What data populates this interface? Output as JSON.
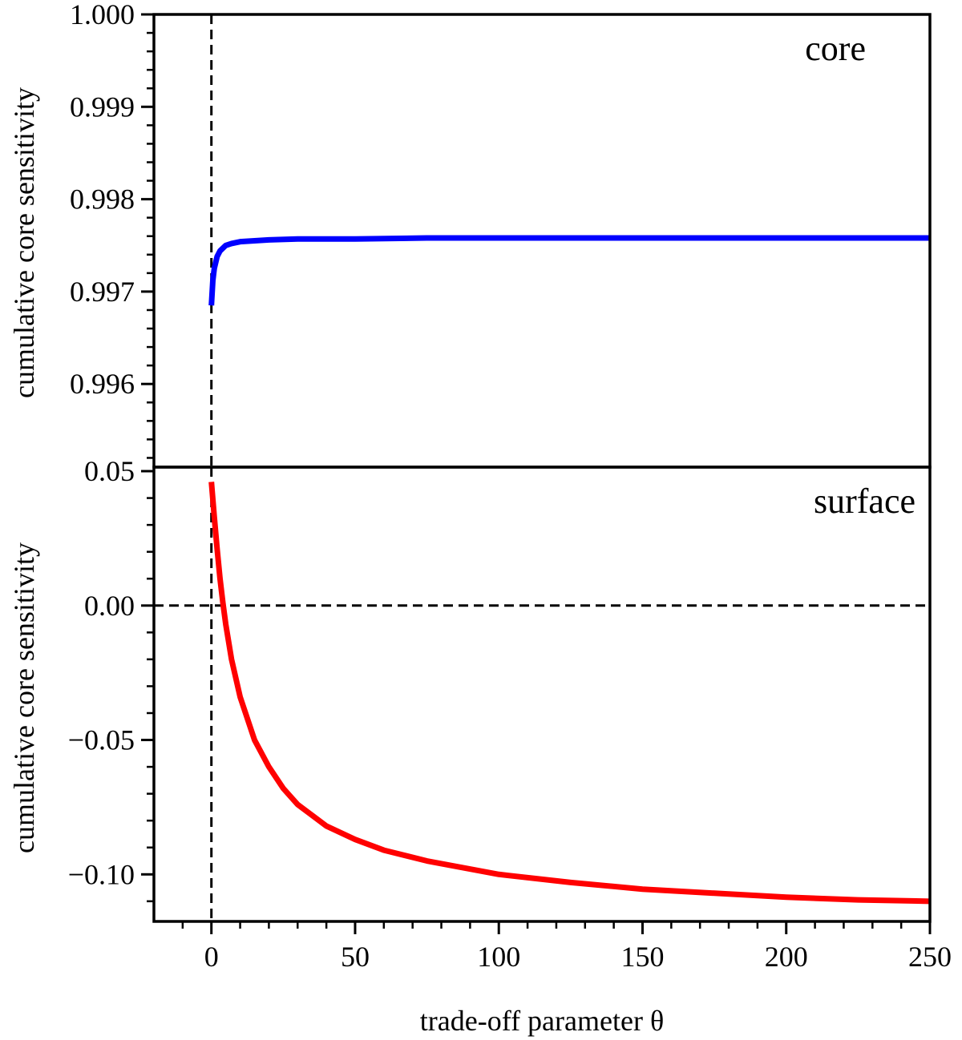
{
  "chart_data": [
    {
      "type": "line",
      "panel_label": "core",
      "xlabel": "trade-off parameter θ",
      "ylabel": "cumulative core sensitivity",
      "xlim": [
        -20,
        250
      ],
      "ylim": [
        0.9951,
        1.0
      ],
      "x_ticks": [
        0,
        50,
        100,
        150,
        200,
        250
      ],
      "y_ticks": [
        0.996,
        0.997,
        0.998,
        0.999,
        1.0
      ],
      "y_tick_labels": [
        "0.996",
        "0.997",
        "0.998",
        "0.999",
        "1.000"
      ],
      "vline_x": 0,
      "series": [
        {
          "color": "#0000ff",
          "x": [
            0,
            0.5,
            1,
            2,
            3,
            5,
            7,
            10,
            15,
            20,
            30,
            50,
            75,
            100,
            150,
            200,
            250
          ],
          "y": [
            0.99685,
            0.99712,
            0.99725,
            0.99738,
            0.99744,
            0.9975,
            0.99752,
            0.99754,
            0.99755,
            0.99756,
            0.99757,
            0.99757,
            0.99758,
            0.99758,
            0.99758,
            0.99758,
            0.99758
          ]
        }
      ]
    },
    {
      "type": "line",
      "panel_label": "surface",
      "xlabel": "trade-off parameter θ",
      "ylabel": "cumulative core sensitivity",
      "xlim": [
        -20,
        250
      ],
      "ylim": [
        -0.1175,
        0.0515
      ],
      "x_ticks": [
        0,
        50,
        100,
        150,
        200,
        250
      ],
      "x_tick_labels": [
        "0",
        "50",
        "100",
        "150",
        "200",
        "250"
      ],
      "y_ticks": [
        0.05,
        0.0,
        -0.05,
        -0.1
      ],
      "y_tick_labels": [
        "0.05",
        "0.00",
        "−0.05",
        "−0.10"
      ],
      "vline_x": 0,
      "hline_y": 0,
      "series": [
        {
          "color": "#ff0000",
          "x": [
            0,
            1,
            2,
            3,
            4,
            5,
            7,
            10,
            15,
            20,
            25,
            30,
            40,
            50,
            60,
            75,
            100,
            125,
            150,
            175,
            200,
            225,
            250
          ],
          "y": [
            0.046,
            0.033,
            0.021,
            0.01,
            0.001,
            -0.007,
            -0.02,
            -0.034,
            -0.05,
            -0.06,
            -0.068,
            -0.074,
            -0.082,
            -0.087,
            -0.091,
            -0.095,
            -0.1,
            -0.103,
            -0.1055,
            -0.107,
            -0.1085,
            -0.1095,
            -0.11
          ]
        }
      ]
    }
  ]
}
